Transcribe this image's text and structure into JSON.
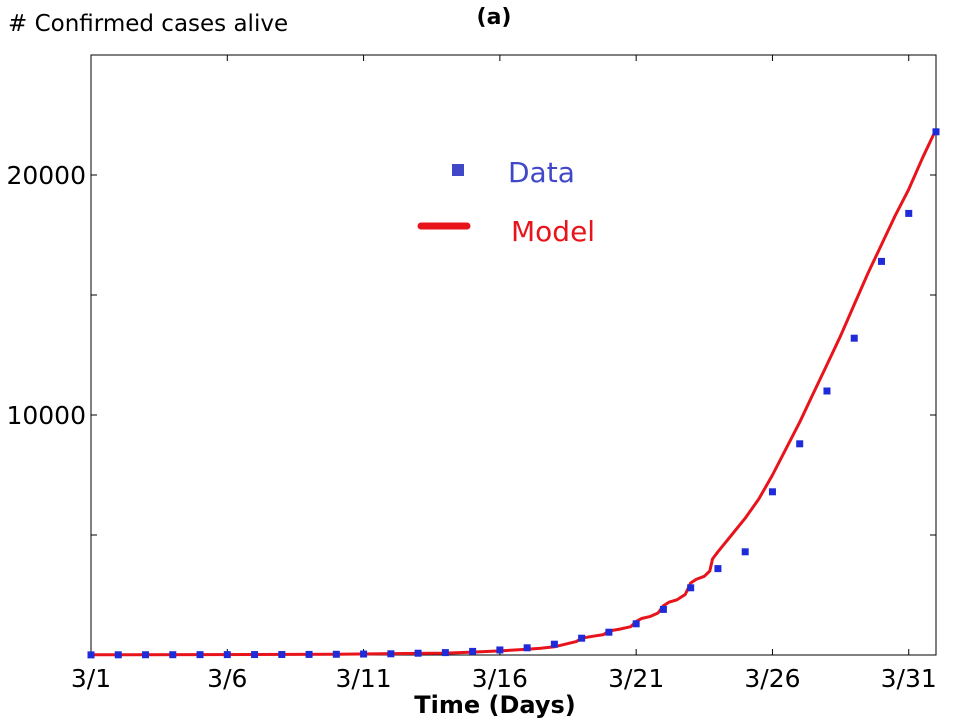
{
  "chart_data": {
    "type": "scatter",
    "panel_label": "(a)",
    "ylabel": "# Confirmed cases alive",
    "xlabel": "Time (Days)",
    "xlim": [
      1,
      32
    ],
    "ylim": [
      0,
      25000
    ],
    "x_ticks": [
      {
        "value": 1,
        "label": "3/1"
      },
      {
        "value": 6,
        "label": "3/6"
      },
      {
        "value": 11,
        "label": "3/11"
      },
      {
        "value": 16,
        "label": "3/16"
      },
      {
        "value": 21,
        "label": "3/21"
      },
      {
        "value": 26,
        "label": "3/26"
      },
      {
        "value": 31,
        "label": "3/31"
      }
    ],
    "y_ticks": [
      {
        "value": 5000,
        "label": ""
      },
      {
        "value": 10000,
        "label": "10000"
      },
      {
        "value": 15000,
        "label": ""
      },
      {
        "value": 20000,
        "label": "20000"
      }
    ],
    "legend": {
      "position": "top-center",
      "entries": [
        "Data",
        "Model"
      ]
    },
    "colors": {
      "data": "#1f2bd9",
      "model": "#e8141c",
      "legend_data_text": "#4048c8",
      "legend_model_text": "#e8141c"
    },
    "series": [
      {
        "name": "Data",
        "kind": "markers",
        "x": [
          1,
          2,
          3,
          4,
          5,
          6,
          7,
          8,
          9,
          10,
          11,
          12,
          13,
          14,
          15,
          16,
          17,
          18,
          19,
          20,
          21,
          22,
          23,
          24,
          25,
          26,
          27,
          28,
          29,
          30,
          31,
          32
        ],
        "y": [
          5,
          8,
          10,
          12,
          14,
          16,
          18,
          20,
          24,
          30,
          40,
          50,
          75,
          100,
          150,
          210,
          300,
          450,
          700,
          950,
          1300,
          1900,
          2800,
          3600,
          4300,
          6800,
          8800,
          11000,
          13200,
          16400,
          18400,
          21800
        ]
      },
      {
        "name": "Model",
        "kind": "line",
        "x": [
          1,
          5,
          10,
          14,
          15,
          16,
          17,
          17.5,
          18,
          18.4,
          18.8,
          19,
          19.4,
          19.8,
          20,
          20.4,
          20.8,
          21,
          21.2,
          21.5,
          21.8,
          22,
          22.2,
          22.5,
          22.8,
          23,
          23.2,
          23.5,
          23.7,
          23.8,
          24,
          24.5,
          25,
          25.5,
          26,
          26.5,
          27,
          27.5,
          28,
          28.5,
          29,
          29.5,
          30,
          30.5,
          31,
          31.5,
          32
        ],
        "y": [
          10,
          15,
          30,
          80,
          120,
          170,
          240,
          280,
          340,
          450,
          560,
          700,
          780,
          850,
          1000,
          1080,
          1180,
          1400,
          1520,
          1600,
          1750,
          2050,
          2200,
          2300,
          2520,
          3000,
          3150,
          3280,
          3500,
          4000,
          4300,
          5000,
          5700,
          6500,
          7500,
          8600,
          9700,
          10900,
          12100,
          13300,
          14600,
          15900,
          17100,
          18300,
          19400,
          20700,
          21900
        ]
      }
    ]
  }
}
